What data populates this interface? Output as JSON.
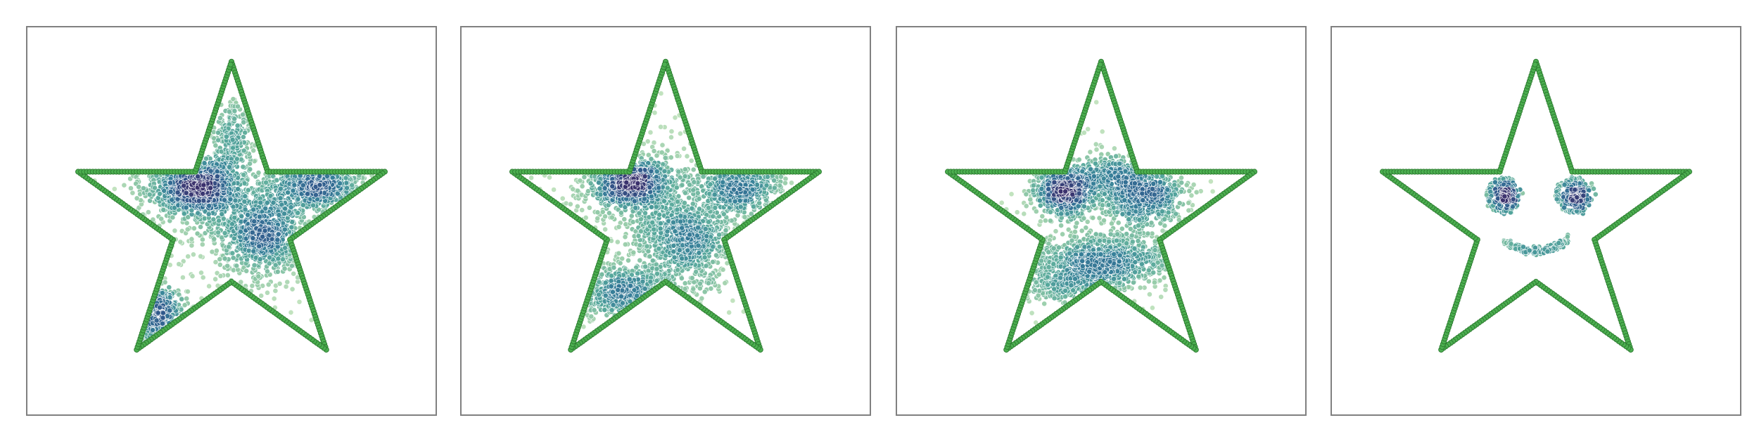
{
  "figure": {
    "background": "#ffffff",
    "panel_border_color": "#808080",
    "outline_color": "#2e7d32",
    "outline_fill_color": "#4caf50",
    "colormap": [
      "#c8e6c0",
      "#8cc6a4",
      "#55a79b",
      "#357f98",
      "#2f5a8c",
      "#3a2f6b"
    ]
  },
  "chart_data": [
    {
      "type": "scatter",
      "panel": 1,
      "title": "",
      "xlabel": "",
      "ylabel": "",
      "axes_visible": false,
      "grid": false,
      "xlim": [
        -1.27,
        1.27
      ],
      "ylim": [
        -1.22,
        1.22
      ],
      "series": [
        {
          "role": "star-outline",
          "star_vertices": [
            [
              0,
              1
            ],
            [
              0.2245,
              0.309
            ],
            [
              0.9511,
              0.309
            ],
            [
              0.3633,
              -0.118
            ],
            [
              0.5878,
              -0.809
            ],
            [
              0,
              -0.382
            ],
            [
              -0.5878,
              -0.809
            ],
            [
              -0.3633,
              -0.118
            ],
            [
              -0.9511,
              0.309
            ],
            [
              -0.2245,
              0.309
            ]
          ],
          "points_per_edge": 40
        },
        {
          "role": "samples",
          "clusters": [
            {
              "cx": -0.22,
              "cy": 0.22,
              "sx": 0.15,
              "sy": 0.09,
              "n": 900
            },
            {
              "cx": 0.2,
              "cy": -0.08,
              "sx": 0.14,
              "sy": 0.14,
              "n": 800
            },
            {
              "cx": 0.55,
              "cy": 0.22,
              "sx": 0.16,
              "sy": 0.07,
              "n": 500
            },
            {
              "cx": -0.48,
              "cy": -0.58,
              "sx": 0.1,
              "sy": 0.09,
              "n": 350
            },
            {
              "cx": 0.0,
              "cy": 0.5,
              "sx": 0.06,
              "sy": 0.15,
              "n": 200
            },
            {
              "cx": 0.05,
              "cy": 0.1,
              "sx": 0.45,
              "sy": 0.35,
              "n": 400
            }
          ]
        }
      ]
    },
    {
      "type": "scatter",
      "panel": 2,
      "title": "",
      "xlabel": "",
      "ylabel": "",
      "axes_visible": false,
      "grid": false,
      "xlim": [
        -1.27,
        1.27
      ],
      "ylim": [
        -1.22,
        1.22
      ],
      "series": [
        {
          "role": "star-outline",
          "star_vertices": [
            [
              0,
              1
            ],
            [
              0.2245,
              0.309
            ],
            [
              0.9511,
              0.309
            ],
            [
              0.3633,
              -0.118
            ],
            [
              0.5878,
              -0.809
            ],
            [
              0,
              -0.382
            ],
            [
              -0.5878,
              -0.809
            ],
            [
              -0.3633,
              -0.118
            ],
            [
              -0.9511,
              0.309
            ],
            [
              -0.2245,
              0.309
            ]
          ],
          "points_per_edge": 40
        },
        {
          "role": "samples",
          "clusters": [
            {
              "cx": -0.22,
              "cy": 0.24,
              "sx": 0.13,
              "sy": 0.08,
              "n": 800
            },
            {
              "cx": 0.45,
              "cy": 0.22,
              "sx": 0.14,
              "sy": 0.08,
              "n": 450
            },
            {
              "cx": 0.12,
              "cy": -0.12,
              "sx": 0.15,
              "sy": 0.13,
              "n": 700
            },
            {
              "cx": -0.25,
              "cy": -0.45,
              "sx": 0.2,
              "sy": 0.09,
              "n": 500
            },
            {
              "cx": 0.05,
              "cy": 0.1,
              "sx": 0.45,
              "sy": 0.35,
              "n": 450
            }
          ]
        }
      ]
    },
    {
      "type": "scatter",
      "panel": 3,
      "title": "",
      "xlabel": "",
      "ylabel": "",
      "axes_visible": false,
      "grid": false,
      "xlim": [
        -1.27,
        1.27
      ],
      "ylim": [
        -1.22,
        1.22
      ],
      "series": [
        {
          "role": "star-outline",
          "star_vertices": [
            [
              0,
              1
            ],
            [
              0.2245,
              0.309
            ],
            [
              0.9511,
              0.309
            ],
            [
              0.3633,
              -0.118
            ],
            [
              0.5878,
              -0.809
            ],
            [
              0,
              -0.382
            ],
            [
              -0.5878,
              -0.809
            ],
            [
              -0.3633,
              -0.118
            ],
            [
              -0.9511,
              0.309
            ],
            [
              -0.2245,
              0.309
            ]
          ],
          "points_per_edge": 40
        },
        {
          "role": "samples",
          "clusters": [
            {
              "cx": -0.22,
              "cy": 0.18,
              "sx": 0.1,
              "sy": 0.08,
              "n": 650
            },
            {
              "cx": 0.27,
              "cy": 0.16,
              "sx": 0.13,
              "sy": 0.09,
              "n": 650
            },
            {
              "cx": 0.05,
              "cy": -0.25,
              "sx": 0.24,
              "sy": 0.08,
              "n": 700
            },
            {
              "cx": -0.2,
              "cy": -0.4,
              "sx": 0.18,
              "sy": 0.07,
              "n": 300
            },
            {
              "cx": 0.05,
              "cy": 0.3,
              "sx": 0.12,
              "sy": 0.06,
              "n": 250
            },
            {
              "cx": 0.02,
              "cy": 0.0,
              "sx": 0.35,
              "sy": 0.25,
              "n": 250
            }
          ]
        }
      ]
    },
    {
      "type": "scatter",
      "panel": 4,
      "title": "",
      "xlabel": "",
      "ylabel": "",
      "axes_visible": false,
      "grid": false,
      "xlim": [
        -1.27,
        1.27
      ],
      "ylim": [
        -1.22,
        1.22
      ],
      "series": [
        {
          "role": "star-outline",
          "star_vertices": [
            [
              0,
              1
            ],
            [
              0.2245,
              0.309
            ],
            [
              0.9511,
              0.309
            ],
            [
              0.3633,
              -0.118
            ],
            [
              0.5878,
              -0.809
            ],
            [
              0,
              -0.382
            ],
            [
              -0.5878,
              -0.809
            ],
            [
              -0.3633,
              -0.118
            ],
            [
              -0.9511,
              0.309
            ],
            [
              -0.2245,
              0.309
            ]
          ],
          "points_per_edge": 40
        },
        {
          "role": "samples",
          "shape": "smiley-face",
          "left_eye": {
            "cx": -0.2,
            "cy": 0.16,
            "r": 0.09,
            "n_pupil": 200,
            "n_ring": 60
          },
          "right_eye": {
            "cx": 0.24,
            "cy": 0.16,
            "r": 0.09,
            "n_pupil": 200,
            "n_ring": 60
          },
          "mouth": {
            "cx": 0.0,
            "cy": -0.12,
            "half_width": 0.2,
            "depth": 0.07,
            "n": 160
          }
        }
      ]
    }
  ]
}
